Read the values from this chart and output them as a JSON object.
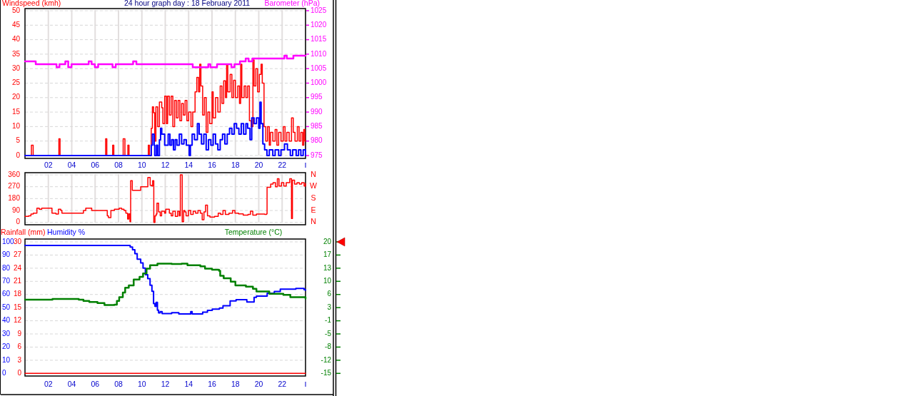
{
  "chart_data": [
    {
      "type": "step",
      "title": "24 hour graph day : 18 February 2011",
      "ylabel": "Windspeed (kmh)",
      "y2label": "Barometer (hPa)",
      "xlim": [
        0,
        24
      ],
      "xticks": [
        {
          "value": 2,
          "label": "02"
        },
        {
          "value": 4,
          "label": "04"
        },
        {
          "value": 6,
          "label": "06"
        },
        {
          "value": 8,
          "label": "08"
        },
        {
          "value": 10,
          "label": "10"
        },
        {
          "value": 12,
          "label": "12"
        },
        {
          "value": 14,
          "label": "14"
        },
        {
          "value": 16,
          "label": "16"
        },
        {
          "value": 18,
          "label": "18"
        },
        {
          "value": 20,
          "label": "20"
        },
        {
          "value": 22,
          "label": "22"
        },
        {
          "value": 24,
          "label": null
        }
      ],
      "ylim": [
        0,
        50
      ],
      "yticks": [
        0,
        5,
        10,
        15,
        20,
        25,
        30,
        35,
        40,
        45,
        50
      ],
      "y2lim": [
        975,
        1025
      ],
      "y2ticks": [
        975,
        980,
        985,
        990,
        995,
        1000,
        1005,
        1010,
        1015,
        1020,
        1025
      ],
      "grid": true,
      "series": [
        {
          "color": "#ff0000",
          "x": [
            0,
            0.55,
            0.7,
            2.9,
            3.0,
            6.9,
            7.0,
            7.5,
            7.6,
            8.4,
            8.55,
            8.8,
            8.9,
            10.55,
            10.65,
            10.8,
            10.9,
            11.0,
            11.1,
            11.2,
            11.35,
            11.5,
            11.7,
            11.8,
            11.95,
            12.1,
            12.2,
            12.35,
            12.5,
            12.65,
            12.8,
            12.95,
            13.1,
            13.25,
            13.4,
            13.55,
            13.7,
            13.85,
            14.0,
            14.2,
            14.35,
            14.55,
            14.7,
            14.85,
            14.95,
            15.05,
            15.2,
            15.35,
            15.5,
            15.65,
            15.8,
            16.0,
            16.1,
            16.3,
            16.5,
            16.7,
            16.85,
            17.0,
            17.15,
            17.25,
            17.35,
            17.55,
            17.7,
            17.85,
            18.0,
            18.2,
            18.35,
            18.45,
            18.55,
            18.75,
            18.9,
            19.05,
            19.2,
            19.35,
            19.5,
            19.6,
            19.75,
            19.9,
            20.05,
            20.2,
            20.3,
            20.45,
            20.6,
            20.75,
            20.9,
            21.0,
            21.2,
            21.4,
            21.55,
            21.7,
            21.9,
            22.1,
            22.25,
            22.4,
            22.6,
            22.8,
            22.95,
            23.1,
            23.3,
            23.45,
            23.6,
            23.75,
            23.85,
            23.95,
            24
          ],
          "values": [
            0,
            3.6,
            0,
            5.8,
            0,
            5.8,
            0,
            3.6,
            0,
            5.8,
            0,
            3.6,
            0,
            3.6,
            0,
            9.4,
            16.8,
            14.8,
            5,
            16.8,
            10,
            18.5,
            16.5,
            11,
            20.5,
            11,
            20.5,
            14,
            20.5,
            10,
            19,
            13,
            19,
            12,
            18,
            14,
            19,
            12,
            15,
            10,
            15,
            22,
            27,
            22,
            31.5,
            24,
            14,
            20,
            8,
            15,
            11,
            22,
            13,
            20,
            15,
            24,
            18,
            25.8,
            20,
            31.5,
            22,
            28,
            20,
            26,
            20,
            24,
            18,
            31.5,
            20,
            24,
            20,
            24,
            12,
            10,
            33,
            24,
            30,
            22,
            28,
            31.5,
            25,
            10,
            5,
            10,
            3.6,
            8,
            5,
            9,
            3.6,
            8,
            5,
            10,
            5,
            8,
            5,
            13,
            8,
            5,
            10,
            5,
            8,
            3.6,
            9,
            5,
            5
          ]
        },
        {
          "color": "#0000ff",
          "x": [
            0,
            10.8,
            10.9,
            11.05,
            11.1,
            11.25,
            11.35,
            11.5,
            11.6,
            11.7,
            11.95,
            12.25,
            12.4,
            12.55,
            12.7,
            12.85,
            13.0,
            13.2,
            13.4,
            13.6,
            13.8,
            14.05,
            14.15,
            14.3,
            14.5,
            14.75,
            14.9,
            15.1,
            15.3,
            15.5,
            15.7,
            15.9,
            16.1,
            16.3,
            16.5,
            16.7,
            16.9,
            17.1,
            17.3,
            17.5,
            17.7,
            17.9,
            18.1,
            18.3,
            18.5,
            18.7,
            18.9,
            19.05,
            19.25,
            19.4,
            19.6,
            19.8,
            20.0,
            20.1,
            20.2,
            20.35,
            20.5,
            20.7,
            20.9,
            21.2,
            21.4,
            21.7,
            21.9,
            22.2,
            22.45,
            22.7,
            22.9,
            23.2,
            23.4,
            23.6,
            23.8,
            24
          ],
          "values": [
            0,
            3.6,
            7.4,
            3.6,
            0,
            3.6,
            0,
            5.4,
            9.4,
            7.4,
            3.6,
            7.4,
            3.6,
            5.5,
            2,
            5.5,
            3.6,
            7.4,
            4,
            5.5,
            3.6,
            0,
            3.6,
            7.4,
            5.5,
            11,
            7.4,
            4,
            7.4,
            2,
            5.5,
            3.6,
            7.4,
            4,
            2,
            5.5,
            7.4,
            4,
            7.4,
            9.4,
            7.4,
            11,
            9.4,
            7.4,
            11,
            7.4,
            11,
            9.4,
            5.5,
            13,
            11,
            13,
            9.4,
            18.4,
            11,
            4,
            2,
            0,
            2,
            0,
            2,
            0,
            2,
            4,
            2,
            0,
            2,
            0,
            2,
            0,
            2,
            0
          ]
        },
        {
          "color": "#ff00ff",
          "axis": "y2",
          "x": [
            0,
            0.92,
            2.7,
            2.95,
            3.45,
            3.7,
            3.98,
            5.45,
            5.7,
            5.98,
            6.26,
            7.49,
            7.76,
            9.25,
            9.53,
            14.35,
            15.68,
            15.86,
            16.43,
            17.66,
            17.92,
            18.39,
            18.88,
            19.13,
            19.45,
            22.19,
            22.4,
            22.96,
            24
          ],
          "values": [
            1007.5,
            1006.5,
            1005.5,
            1006.5,
            1007.5,
            1005.5,
            1006.5,
            1007.5,
            1006.5,
            1005.5,
            1006.5,
            1005.5,
            1006.5,
            1007.5,
            1006.5,
            1005.5,
            1006.5,
            1005.5,
            1006.5,
            1005.5,
            1006.5,
            1007.5,
            1008.5,
            1007.5,
            1008.5,
            1009.5,
            1008.5,
            1009.5,
            1009.5
          ]
        }
      ]
    },
    {
      "type": "step",
      "xlim": [
        0,
        24
      ],
      "xticks": [
        2,
        4,
        6,
        8,
        10,
        12,
        14,
        16,
        18,
        20,
        22
      ],
      "tick_labels": "y",
      "ylim": [
        0,
        360
      ],
      "yticks": [
        0,
        90,
        180,
        270,
        360
      ],
      "annotations": [
        "N",
        "W",
        "S",
        "E",
        "N"
      ],
      "grid": true,
      "series": [
        {
          "color": "#ff0000",
          "x": [
            0,
            0.31,
            0.51,
            0.71,
            1.02,
            1.22,
            1.43,
            2.24,
            2.31,
            2.65,
            2.86,
            3.06,
            3.16,
            4.8,
            5.0,
            5.2,
            5.61,
            5.71,
            6.94,
            7.04,
            7.14,
            7.35,
            7.65,
            8.06,
            8.27,
            8.47,
            8.63,
            8.78,
            8.88,
            8.98,
            9.04,
            9.18,
            9.8,
            9.9,
            10.41,
            10.51,
            10.71,
            10.86,
            10.92,
            11.02,
            11.12,
            11.22,
            11.29,
            11.43,
            11.57,
            11.69,
            11.94,
            12.04,
            12.35,
            12.51,
            12.65,
            12.86,
            13.06,
            13.2,
            13.29,
            13.39,
            13.45,
            13.57,
            13.67,
            13.78,
            13.98,
            14.18,
            14.39,
            14.59,
            14.8,
            15.0,
            15.16,
            15.31,
            15.45,
            15.61,
            15.82,
            16.22,
            16.53,
            16.73,
            16.94,
            17.14,
            17.45,
            17.76,
            17.96,
            18.27,
            18.67,
            19.08,
            19.29,
            19.49,
            19.8,
            20.51,
            20.67,
            20.71,
            21.02,
            21.22,
            21.43,
            21.59,
            21.73,
            21.94,
            22.14,
            22.35,
            22.65,
            22.8,
            22.88,
            23.06,
            23.27,
            23.47,
            23.67,
            23.88,
            24
          ],
          "values": [
            45,
            50,
            63,
            70,
            108,
            100,
            108,
            108,
            70,
            63,
            100,
            90,
            70,
            70,
            90,
            108,
            108,
            90,
            90,
            50,
            36,
            90,
            100,
            108,
            100,
            90,
            70,
            25,
            65,
            5,
            315,
            243,
            243,
            270,
            270,
            340,
            280,
            275,
            315,
            0,
            50,
            63,
            145,
            80,
            50,
            85,
            70,
            100,
            70,
            50,
            85,
            45,
            85,
            50,
            360,
            360,
            5,
            90,
            80,
            50,
            90,
            60,
            85,
            70,
            90,
            70,
            20,
            80,
            130,
            50,
            40,
            45,
            70,
            60,
            90,
            60,
            70,
            90,
            70,
            65,
            55,
            60,
            85,
            55,
            63,
            60,
            65,
            265,
            290,
            300,
            270,
            330,
            275,
            300,
            275,
            300,
            330,
            30,
            320,
            290,
            300,
            290,
            300,
            275,
            295
          ]
        }
      ]
    },
    {
      "type": "step",
      "ylabel": "Humidity %",
      "y2label": "Temperature (°C)",
      "y3label": "Rainfall (mm)",
      "xlim": [
        0,
        24
      ],
      "xticks": [
        {
          "value": 2,
          "label": "02"
        },
        {
          "value": 4,
          "label": "04"
        },
        {
          "value": 6,
          "label": "06"
        },
        {
          "value": 8,
          "label": "08"
        },
        {
          "value": 10,
          "label": "10"
        },
        {
          "value": 12,
          "label": "12"
        },
        {
          "value": 14,
          "label": "14"
        },
        {
          "value": 16,
          "label": "16"
        },
        {
          "value": 18,
          "label": "18"
        },
        {
          "value": 20,
          "label": "20"
        },
        {
          "value": 22,
          "label": "22"
        },
        {
          "value": 24,
          "label": null
        }
      ],
      "ylim": [
        0,
        100
      ],
      "yticks": [
        0,
        10,
        20,
        30,
        40,
        50,
        60,
        70,
        80,
        90,
        100
      ],
      "y3lim": [
        0,
        30
      ],
      "y3ticks": [
        0,
        3,
        6,
        9,
        12,
        15,
        18,
        21,
        24,
        27,
        30
      ],
      "y2lim": [
        -15,
        20
      ],
      "y2ticks": [
        -15,
        {
          "value": -11.5,
          "label": "-12"
        },
        -8,
        {
          "value": -4.5,
          "label": "-5"
        },
        -1,
        {
          "value": 2.5,
          "label": "3"
        },
        6,
        {
          "value": 9.5,
          "label": "10"
        },
        13,
        {
          "value": 16.5,
          "label": "17"
        },
        20
      ],
      "grid": "y",
      "series": [
        {
          "color": "#ff0000",
          "axis": "y3",
          "x": [
            0,
            24
          ],
          "values": [
            0,
            0
          ]
        },
        {
          "color": "#0000ff",
          "x": [
            0,
            8.8,
            9.0,
            9.2,
            9.4,
            9.6,
            9.9,
            10.1,
            10.3,
            10.5,
            10.7,
            10.86,
            11.0,
            11.12,
            11.22,
            11.33,
            11.43,
            11.57,
            11.73,
            12.55,
            13.16,
            13.6,
            14.18,
            14.3,
            15.2,
            15.61,
            16.02,
            16.63,
            16.94,
            17.55,
            18.06,
            18.47,
            18.98,
            19.39,
            19.6,
            19.8,
            20.51,
            20.72,
            21.33,
            21.84,
            23.17,
            23.88,
            24
          ],
          "values": [
            97.3,
            97.3,
            96,
            94,
            91,
            86.8,
            84,
            80,
            75,
            72,
            67,
            62.4,
            53,
            51,
            54,
            48,
            46,
            47,
            45.5,
            46.1,
            45.2,
            45.2,
            47,
            45.2,
            46.5,
            47.9,
            48.8,
            49.7,
            51.5,
            55.1,
            56,
            56,
            54.3,
            54.3,
            57.8,
            58.7,
            58.7,
            61,
            62.3,
            64.1,
            64.6,
            63.7,
            63.2
          ]
        },
        {
          "color": "#008000",
          "axis": "y2",
          "x": [
            0,
            2.35,
            4.6,
            5.0,
            5.5,
            6.2,
            6.8,
            7.65,
            7.86,
            8.06,
            8.37,
            8.57,
            8.88,
            9.3,
            9.8,
            10.1,
            10.4,
            10.7,
            11.33,
            12.55,
            13.4,
            13.9,
            14.6,
            15.0,
            15.4,
            16.0,
            16.6,
            16.7,
            17.0,
            17.6,
            18.0,
            18.9,
            19.5,
            19.8,
            20.9,
            22.1,
            22.7,
            24
          ],
          "values": [
            4.6,
            4.8,
            4.6,
            4.3,
            4.0,
            3.7,
            3.2,
            3.3,
            4.3,
            5.3,
            6.5,
            7.8,
            8.4,
            10.0,
            10.7,
            11.6,
            12.9,
            13.8,
            14.2,
            14.1,
            14.2,
            13.8,
            13.8,
            13.5,
            12.9,
            12.6,
            12.3,
            11.0,
            10.3,
            9.4,
            8.4,
            8.1,
            7.5,
            6.8,
            6.2,
            5.9,
            5.3,
            4.9
          ]
        }
      ]
    }
  ]
}
